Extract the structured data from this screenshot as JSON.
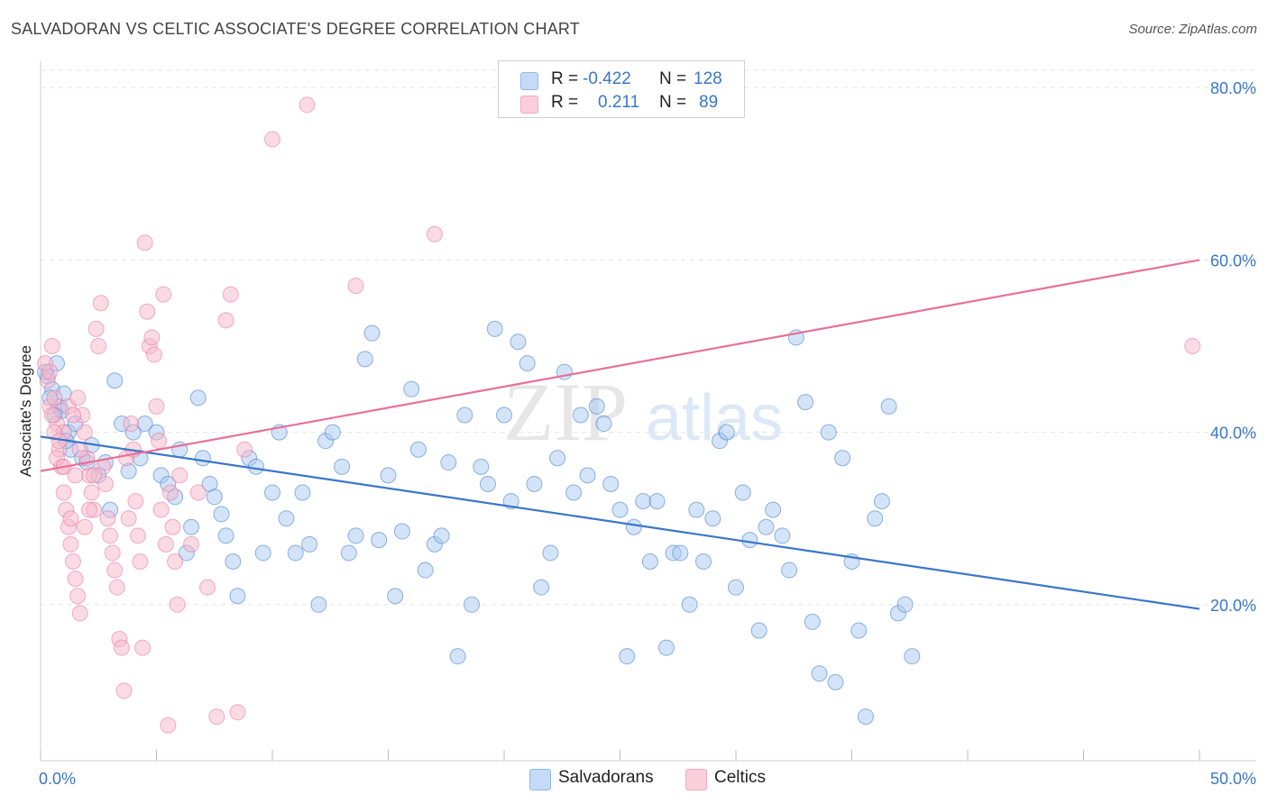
{
  "header": {
    "title": "SALVADORAN VS CELTIC ASSOCIATE'S DEGREE CORRELATION CHART",
    "source": "Source: ZipAtlas.com"
  },
  "watermark": {
    "zip": "ZIP",
    "atlas": "atlas"
  },
  "legend": {
    "rows": [
      {
        "r_label": "R =",
        "r_value": "-0.422",
        "n_label": "N =",
        "n_value": "128",
        "color": "#8fb8ee"
      },
      {
        "r_label": "R =",
        "r_value": "0.211",
        "n_label": "N =",
        "n_value": "89",
        "color": "#f4a9c0"
      }
    ]
  },
  "bottom_legend": [
    {
      "label": "Salvadorans",
      "color": "#8fb8ee"
    },
    {
      "label": "Celtics",
      "color": "#f4a9c0"
    }
  ],
  "chart_data": {
    "type": "scatter",
    "title": "SALVADORAN VS CELTIC ASSOCIATE'S DEGREE CORRELATION CHART",
    "xlabel": "",
    "ylabel": "Associate's Degree",
    "xlim": [
      0,
      50
    ],
    "ylim": [
      0,
      80
    ],
    "x_tick_labels": [
      "0.0%",
      "50.0%"
    ],
    "y_tick_labels": [
      "20.0%",
      "40.0%",
      "60.0%",
      "80.0%"
    ],
    "y_ticks": [
      20,
      40,
      60,
      80
    ],
    "grid": true,
    "series": [
      {
        "name": "Salvadorans",
        "color": "#3a76c8",
        "fill": "#a9c9f1",
        "trend": {
          "x": [
            0,
            50
          ],
          "y": [
            39.5,
            19.5
          ]
        },
        "points": [
          [
            0.3,
            46.5
          ],
          [
            0.5,
            45
          ],
          [
            0.8,
            43
          ],
          [
            0.9,
            42.5
          ],
          [
            1,
            44.5
          ],
          [
            1.2,
            40
          ],
          [
            1.3,
            38
          ],
          [
            1.5,
            41
          ],
          [
            1.8,
            37
          ],
          [
            2,
            36.5
          ],
          [
            2.2,
            38.5
          ],
          [
            2.5,
            35
          ],
          [
            2.8,
            36.5
          ],
          [
            3,
            31
          ],
          [
            3.2,
            46
          ],
          [
            3.5,
            41
          ],
          [
            3.8,
            35.5
          ],
          [
            4,
            40
          ],
          [
            4.3,
            37
          ],
          [
            4.5,
            41
          ],
          [
            5,
            40
          ],
          [
            5.2,
            35
          ],
          [
            5.5,
            34
          ],
          [
            5.8,
            32.5
          ],
          [
            6,
            38
          ],
          [
            6.3,
            26
          ],
          [
            6.5,
            29
          ],
          [
            6.8,
            44
          ],
          [
            7,
            37
          ],
          [
            7.3,
            34
          ],
          [
            7.5,
            32.5
          ],
          [
            7.8,
            30.5
          ],
          [
            8,
            28
          ],
          [
            8.3,
            25
          ],
          [
            8.5,
            21
          ],
          [
            9,
            37
          ],
          [
            9.3,
            36
          ],
          [
            9.6,
            26
          ],
          [
            10,
            33
          ],
          [
            10.3,
            40
          ],
          [
            10.6,
            30
          ],
          [
            11,
            26
          ],
          [
            11.3,
            33
          ],
          [
            11.6,
            27
          ],
          [
            12,
            20
          ],
          [
            12.3,
            39
          ],
          [
            12.6,
            40
          ],
          [
            13,
            36
          ],
          [
            13.3,
            26
          ],
          [
            13.6,
            28
          ],
          [
            14,
            48.5
          ],
          [
            14.3,
            51.5
          ],
          [
            14.6,
            27.5
          ],
          [
            15,
            35
          ],
          [
            15.3,
            21
          ],
          [
            15.6,
            28.5
          ],
          [
            16,
            45
          ],
          [
            16.3,
            38
          ],
          [
            16.6,
            24
          ],
          [
            17,
            27
          ],
          [
            17.3,
            28
          ],
          [
            17.6,
            36.5
          ],
          [
            18,
            14
          ],
          [
            18.3,
            42
          ],
          [
            18.6,
            20
          ],
          [
            19,
            36
          ],
          [
            19.3,
            34
          ],
          [
            19.6,
            52
          ],
          [
            20,
            42
          ],
          [
            20.3,
            32
          ],
          [
            20.6,
            50.5
          ],
          [
            21,
            48
          ],
          [
            21.3,
            34
          ],
          [
            21.6,
            22
          ],
          [
            22,
            26
          ],
          [
            22.3,
            37
          ],
          [
            22.6,
            47
          ],
          [
            23,
            33
          ],
          [
            23.3,
            42
          ],
          [
            23.6,
            35
          ],
          [
            24,
            43
          ],
          [
            24.3,
            41
          ],
          [
            24.6,
            34
          ],
          [
            25,
            31
          ],
          [
            25.3,
            14
          ],
          [
            25.6,
            29
          ],
          [
            26,
            32
          ],
          [
            26.3,
            25
          ],
          [
            26.6,
            32
          ],
          [
            27,
            15
          ],
          [
            27.3,
            26
          ],
          [
            27.6,
            26
          ],
          [
            28,
            20
          ],
          [
            28.3,
            31
          ],
          [
            28.6,
            25
          ],
          [
            29,
            30
          ],
          [
            29.3,
            39
          ],
          [
            29.6,
            40
          ],
          [
            30,
            22
          ],
          [
            30.3,
            33
          ],
          [
            30.6,
            27.5
          ],
          [
            31,
            17
          ],
          [
            31.3,
            29
          ],
          [
            31.6,
            31
          ],
          [
            32,
            28
          ],
          [
            32.3,
            24
          ],
          [
            32.6,
            51
          ],
          [
            33,
            43.5
          ],
          [
            33.3,
            18
          ],
          [
            33.6,
            12
          ],
          [
            34,
            40
          ],
          [
            34.3,
            11
          ],
          [
            34.6,
            37
          ],
          [
            35,
            25
          ],
          [
            35.3,
            17
          ],
          [
            35.6,
            7
          ],
          [
            36,
            30
          ],
          [
            36.3,
            32
          ],
          [
            36.6,
            43
          ],
          [
            37,
            19
          ],
          [
            37.3,
            20
          ],
          [
            37.6,
            14
          ],
          [
            0.2,
            47
          ],
          [
            0.4,
            44
          ],
          [
            0.6,
            42
          ],
          [
            0.7,
            48
          ],
          [
            1.1,
            39
          ]
        ]
      },
      {
        "name": "Celtics",
        "color": "#e8709a",
        "fill": "#f6b8ca",
        "trend": {
          "x": [
            0,
            50
          ],
          "y": [
            35.5,
            60
          ]
        },
        "points": [
          [
            0.2,
            48
          ],
          [
            0.3,
            46
          ],
          [
            0.4,
            43
          ],
          [
            0.5,
            50
          ],
          [
            0.6,
            44
          ],
          [
            0.7,
            41
          ],
          [
            0.8,
            38
          ],
          [
            0.9,
            36
          ],
          [
            1,
            33
          ],
          [
            1.1,
            31
          ],
          [
            1.2,
            29
          ],
          [
            1.3,
            27
          ],
          [
            1.4,
            25
          ],
          [
            1.5,
            23
          ],
          [
            1.6,
            21
          ],
          [
            1.7,
            19
          ],
          [
            1.8,
            42
          ],
          [
            1.9,
            40
          ],
          [
            2,
            37
          ],
          [
            2.1,
            35
          ],
          [
            2.2,
            33
          ],
          [
            2.3,
            31
          ],
          [
            2.4,
            52
          ],
          [
            2.5,
            50
          ],
          [
            2.6,
            55
          ],
          [
            2.7,
            36
          ],
          [
            2.8,
            34
          ],
          [
            2.9,
            30
          ],
          [
            3,
            28
          ],
          [
            3.1,
            26
          ],
          [
            3.2,
            24
          ],
          [
            3.3,
            22
          ],
          [
            3.4,
            16
          ],
          [
            3.5,
            15
          ],
          [
            3.6,
            10
          ],
          [
            3.7,
            37
          ],
          [
            3.8,
            30
          ],
          [
            3.9,
            41
          ],
          [
            4,
            38
          ],
          [
            4.1,
            32
          ],
          [
            4.2,
            28
          ],
          [
            4.3,
            25
          ],
          [
            4.4,
            15
          ],
          [
            4.5,
            62
          ],
          [
            4.6,
            54
          ],
          [
            4.7,
            50
          ],
          [
            4.8,
            51
          ],
          [
            4.9,
            49
          ],
          [
            5,
            43
          ],
          [
            5.1,
            39
          ],
          [
            5.2,
            31
          ],
          [
            5.3,
            56
          ],
          [
            5.4,
            27
          ],
          [
            5.5,
            6
          ],
          [
            5.6,
            33
          ],
          [
            5.7,
            29
          ],
          [
            5.8,
            25
          ],
          [
            5.9,
            20
          ],
          [
            6,
            35
          ],
          [
            6.5,
            27
          ],
          [
            6.8,
            33
          ],
          [
            7.2,
            22
          ],
          [
            7.6,
            7
          ],
          [
            8,
            53
          ],
          [
            8.2,
            56
          ],
          [
            8.5,
            7.5
          ],
          [
            8.8,
            38
          ],
          [
            10,
            74
          ],
          [
            11.5,
            78
          ],
          [
            13.6,
            57
          ],
          [
            17,
            63
          ],
          [
            1,
            40
          ],
          [
            1.2,
            43
          ],
          [
            1.4,
            42
          ],
          [
            1.6,
            44
          ],
          [
            0.4,
            47
          ],
          [
            0.6,
            40
          ],
          [
            0.8,
            39
          ],
          [
            0.5,
            42
          ],
          [
            0.7,
            37
          ],
          [
            1,
            36
          ],
          [
            1.3,
            30
          ],
          [
            1.5,
            35
          ],
          [
            1.7,
            38
          ],
          [
            1.9,
            29
          ],
          [
            2.1,
            31
          ],
          [
            2.3,
            35
          ],
          [
            49.7,
            50
          ]
        ]
      }
    ]
  }
}
